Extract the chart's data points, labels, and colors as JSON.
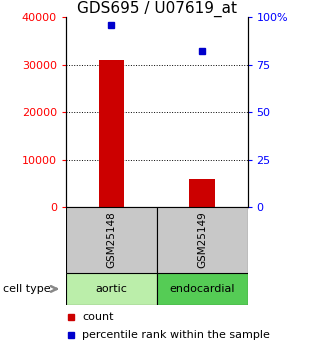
{
  "title": "GDS695 / U07619_at",
  "samples": [
    "GSM25148",
    "GSM25149"
  ],
  "cell_types": [
    "aortic",
    "endocardial"
  ],
  "counts": [
    31000,
    6000
  ],
  "percentiles": [
    96,
    82
  ],
  "y_left_max": 40000,
  "y_left_ticks": [
    0,
    10000,
    20000,
    30000,
    40000
  ],
  "y_right_max": 100,
  "y_right_ticks": [
    0,
    25,
    50,
    75,
    100
  ],
  "y_right_ticklabels": [
    "0",
    "25",
    "50",
    "75",
    "100%"
  ],
  "bar_color": "#cc0000",
  "dot_color": "#0000cc",
  "sample_box_color": "#c8c8c8",
  "cell_type_box_colors": [
    "#bbeeaa",
    "#55cc55"
  ],
  "legend_count_label": "count",
  "legend_percentile_label": "percentile rank within the sample",
  "cell_type_label": "cell type",
  "title_fontsize": 11,
  "tick_fontsize": 8,
  "legend_fontsize": 8,
  "x_positions": [
    0.5,
    1.5
  ],
  "bar_width": 0.28,
  "xlim": [
    0.0,
    2.0
  ],
  "gridlines": [
    10000,
    20000,
    30000
  ],
  "dot_markersize": 5
}
